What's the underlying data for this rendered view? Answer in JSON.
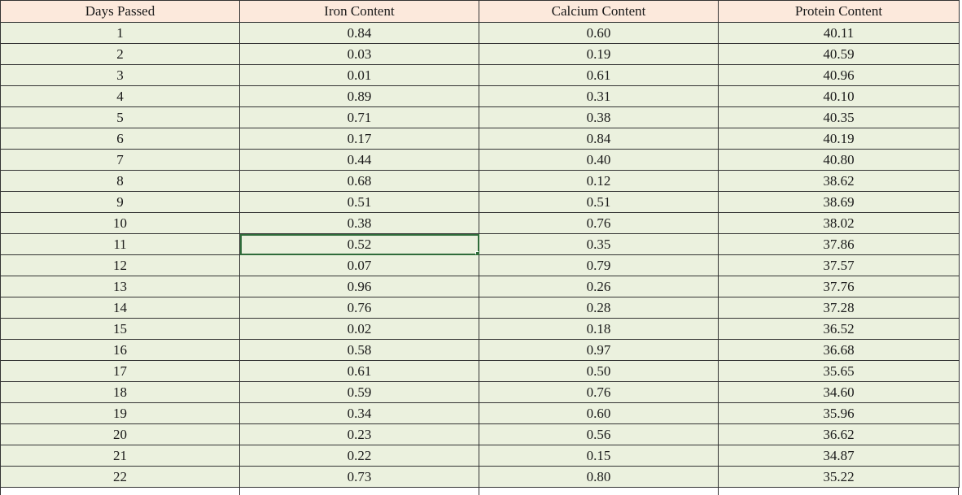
{
  "table": {
    "columns": [
      "Days Passed",
      "Iron Content",
      "Calcium Content",
      "Protein Content"
    ],
    "rows": [
      [
        "1",
        "0.84",
        "0.60",
        "40.11"
      ],
      [
        "2",
        "0.03",
        "0.19",
        "40.59"
      ],
      [
        "3",
        "0.01",
        "0.61",
        "40.96"
      ],
      [
        "4",
        "0.89",
        "0.31",
        "40.10"
      ],
      [
        "5",
        "0.71",
        "0.38",
        "40.35"
      ],
      [
        "6",
        "0.17",
        "0.84",
        "40.19"
      ],
      [
        "7",
        "0.44",
        "0.40",
        "40.80"
      ],
      [
        "8",
        "0.68",
        "0.12",
        "38.62"
      ],
      [
        "9",
        "0.51",
        "0.51",
        "38.69"
      ],
      [
        "10",
        "0.38",
        "0.76",
        "38.02"
      ],
      [
        "11",
        "0.52",
        "0.35",
        "37.86"
      ],
      [
        "12",
        "0.07",
        "0.79",
        "37.57"
      ],
      [
        "13",
        "0.96",
        "0.26",
        "37.76"
      ],
      [
        "14",
        "0.76",
        "0.28",
        "37.28"
      ],
      [
        "15",
        "0.02",
        "0.18",
        "36.52"
      ],
      [
        "16",
        "0.58",
        "0.97",
        "36.68"
      ],
      [
        "17",
        "0.61",
        "0.50",
        "35.65"
      ],
      [
        "18",
        "0.59",
        "0.76",
        "34.60"
      ],
      [
        "19",
        "0.34",
        "0.60",
        "35.96"
      ],
      [
        "20",
        "0.23",
        "0.56",
        "36.62"
      ],
      [
        "21",
        "0.22",
        "0.15",
        "34.87"
      ],
      [
        "22",
        "0.73",
        "0.80",
        "35.22"
      ]
    ]
  },
  "selection": {
    "row": 10,
    "col": 1
  },
  "colors": {
    "header_bg": "#fce9dc",
    "cell_bg": "#ebf1de",
    "grid_line": "#333333",
    "selection_border": "#2f6b3a"
  }
}
